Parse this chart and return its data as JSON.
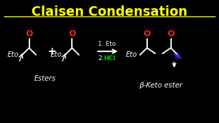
{
  "title": "Claisen Condensation",
  "title_color": "#FFFF00",
  "bg_color": "#000000",
  "white": "#FFFFFF",
  "red": "#EE2222",
  "green": "#00CC00",
  "blue": "#3333FF",
  "label_esters": "Esters",
  "label_beta": "β-Keto ester",
  "reagent1": "1. Eto",
  "reagent2": "HCl",
  "title_fontsize": 13.5,
  "body_fontsize": 7.5,
  "o_fontsize": 8.5,
  "eto_fontsize": 7.5
}
